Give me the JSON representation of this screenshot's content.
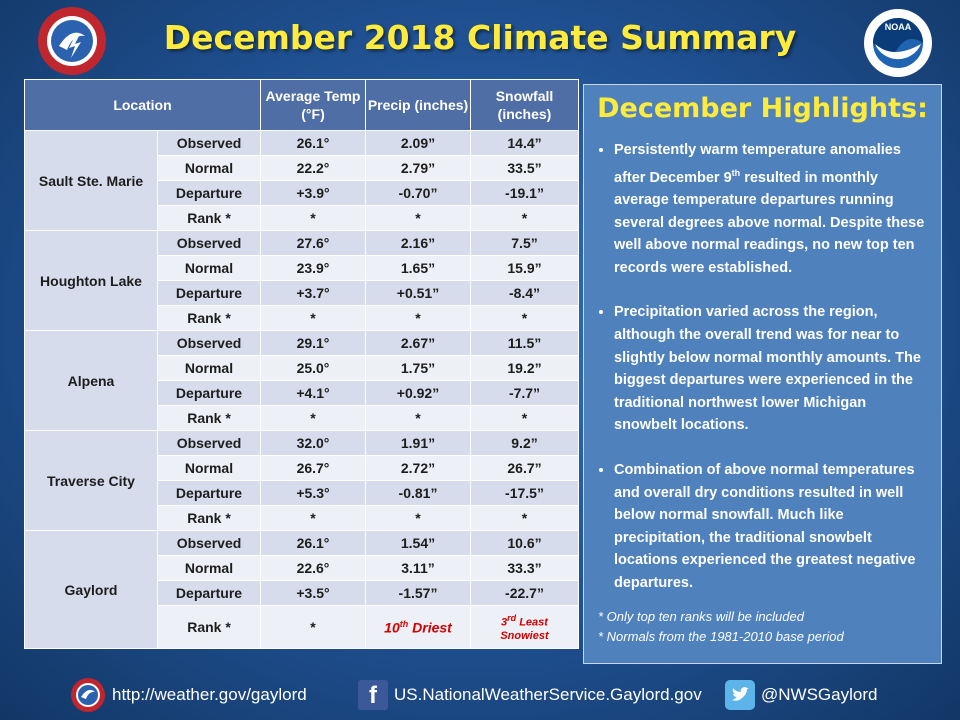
{
  "title": "December 2018 Climate Summary",
  "headers": {
    "location": "Location",
    "avg_temp": "Average Temp (°F)",
    "precip": "Precip (inches)",
    "snowfall": "Snowfall (inches)"
  },
  "row_labels": [
    "Observed",
    "Normal",
    "Departure",
    "Rank *"
  ],
  "locations": [
    {
      "name": "Sault Ste. Marie",
      "temp": [
        "26.1°",
        "22.2°",
        "+3.9°",
        "*"
      ],
      "precip": [
        "2.09”",
        "2.79”",
        "-0.70”",
        "*"
      ],
      "snow": [
        "14.4”",
        "33.5”",
        "-19.1”",
        "*"
      ]
    },
    {
      "name": "Houghton Lake",
      "temp": [
        "27.6°",
        "23.9°",
        "+3.7°",
        "*"
      ],
      "precip": [
        "2.16”",
        "1.65”",
        "+0.51”",
        "*"
      ],
      "snow": [
        "7.5”",
        "15.9”",
        "-8.4”",
        "*"
      ]
    },
    {
      "name": "Alpena",
      "temp": [
        "29.1°",
        "25.0°",
        "+4.1°",
        "*"
      ],
      "precip": [
        "2.67”",
        "1.75”",
        "+0.92”",
        "*"
      ],
      "snow": [
        "11.5”",
        "19.2”",
        "-7.7”",
        "*"
      ]
    },
    {
      "name": "Traverse City",
      "temp": [
        "32.0°",
        "26.7°",
        "+5.3°",
        "*"
      ],
      "precip": [
        "1.91”",
        "2.72”",
        "-0.81”",
        "*"
      ],
      "snow": [
        "9.2”",
        "26.7”",
        "-17.5”",
        "*"
      ]
    },
    {
      "name": "Gaylord",
      "temp": [
        "26.1°",
        "22.6°",
        "+3.5°",
        "*"
      ],
      "precip": [
        "1.54”",
        "3.11”",
        "-1.57”",
        ""
      ],
      "snow": [
        "10.6”",
        "33.3”",
        "-22.7”",
        ""
      ]
    }
  ],
  "gaylord_rank": {
    "precip_num": "10",
    "precip_sup": "th",
    "precip_text": " Driest",
    "snow_num": "3",
    "snow_sup": "rd",
    "snow_text1": " Least",
    "snow_text2": "Snowiest"
  },
  "highlights": {
    "title": "December Highlights:",
    "bullet1_a": "Persistently warm temperature anomalies after December 9",
    "bullet1_sup": "th",
    "bullet1_b": " resulted in monthly average temperature departures running several degrees above normal. Despite these well above normal readings, no new top ten records were established.",
    "bullet2": "Precipitation varied across the region, although the overall trend  was for near to slightly below normal monthly amounts. The biggest departures were experienced in the traditional northwest lower Michigan snowbelt locations.",
    "bullet3": "Combination of above normal temperatures and overall dry conditions resulted in well below normal snowfall. Much like precipitation, the traditional snowbelt locations experienced the greatest negative departures.",
    "note1": "*  Only top ten ranks will be included",
    "note2": "*  Normals from the 1981-2010 base period"
  },
  "footer": {
    "website": "http://weather.gov/gaylord",
    "facebook": "US.NationalWeatherService.Gaylord.gov",
    "twitter": "@NWSGaylord"
  },
  "colors": {
    "title": "#ffeb3b",
    "header_bg": "#4f6ea6",
    "highlights_bg": "#4f81bd",
    "rank_red": "#d40000"
  }
}
